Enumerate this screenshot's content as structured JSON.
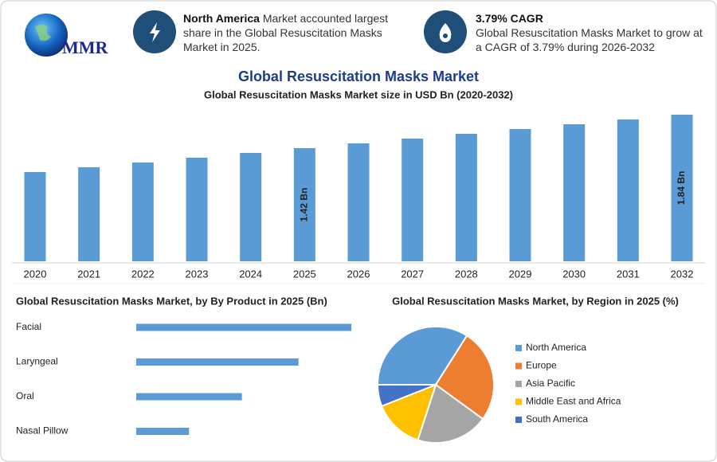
{
  "header": {
    "logo": "MMR",
    "facts": [
      {
        "highlight": "North America",
        "text": " Market accounted largest share in the Global Resuscitation Masks Market in 2025."
      },
      {
        "highlight": "3.79% CAGR",
        "text": "Global Resuscitation Masks Market to grow at a CAGR of 3.79% during 2026-2032"
      }
    ]
  },
  "chart_data": [
    {
      "type": "bar",
      "title": "Global Resuscitation Masks Market",
      "subtitle": "Global Resuscitation Masks Market size in USD Bn (2020-2032)",
      "categories": [
        "2020",
        "2021",
        "2022",
        "2023",
        "2024",
        "2025",
        "2026",
        "2027",
        "2028",
        "2029",
        "2030",
        "2031",
        "2032"
      ],
      "values": [
        1.12,
        1.18,
        1.24,
        1.3,
        1.36,
        1.42,
        1.48,
        1.54,
        1.6,
        1.66,
        1.72,
        1.78,
        1.84
      ],
      "value_labels": [
        null,
        null,
        null,
        null,
        null,
        "1.42 Bn",
        null,
        null,
        null,
        null,
        null,
        null,
        "1.84 Bn"
      ],
      "color": "#5b9bd5"
    },
    {
      "type": "hbar",
      "title": "Global Resuscitation Masks Market, by By Product in 2025 (Bn)",
      "categories": [
        "Facial",
        "Laryngeal",
        "Oral",
        "Nasal Pillow"
      ],
      "values": [
        0.57,
        0.43,
        0.28,
        0.14
      ],
      "color": "#5b9bd5"
    },
    {
      "type": "pie",
      "title": "Global Resuscitation Masks Market, by Region in 2025 (%)",
      "categories": [
        "North America",
        "Europe",
        "Asia Pacific",
        "Middle East and Africa",
        "South America"
      ],
      "values": [
        34,
        26,
        20,
        14,
        6
      ],
      "colors": [
        "#5b9bd5",
        "#ed7d31",
        "#a5a5a5",
        "#ffc000",
        "#4472c4"
      ]
    }
  ]
}
